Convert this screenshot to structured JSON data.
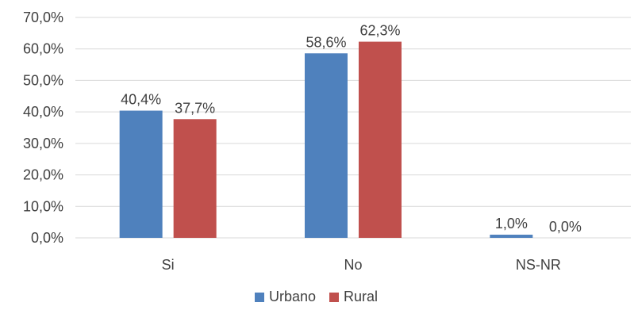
{
  "chart_data": {
    "type": "bar",
    "categories": [
      "Si",
      "No",
      "NS-NR"
    ],
    "series": [
      {
        "name": "Urbano",
        "color": "#4f81bd",
        "values": [
          40.4,
          58.6,
          1.0
        ],
        "labels": [
          "40,4%",
          "58,6%",
          "1,0%"
        ]
      },
      {
        "name": "Rural",
        "color": "#c0504d",
        "values": [
          37.7,
          62.3,
          0.0
        ],
        "labels": [
          "37,7%",
          "62,3%",
          "0,0%"
        ]
      }
    ],
    "ylim": [
      0,
      70
    ],
    "yticks": [
      0,
      10,
      20,
      30,
      40,
      50,
      60,
      70
    ],
    "ytick_labels": [
      "0,0%",
      "10,0%",
      "20,0%",
      "30,0%",
      "40,0%",
      "50,0%",
      "60,0%",
      "70,0%"
    ],
    "grid": true,
    "gridline_color": "#d9d9d9",
    "legend_position": "bottom",
    "title": "",
    "xlabel": "",
    "ylabel": ""
  }
}
